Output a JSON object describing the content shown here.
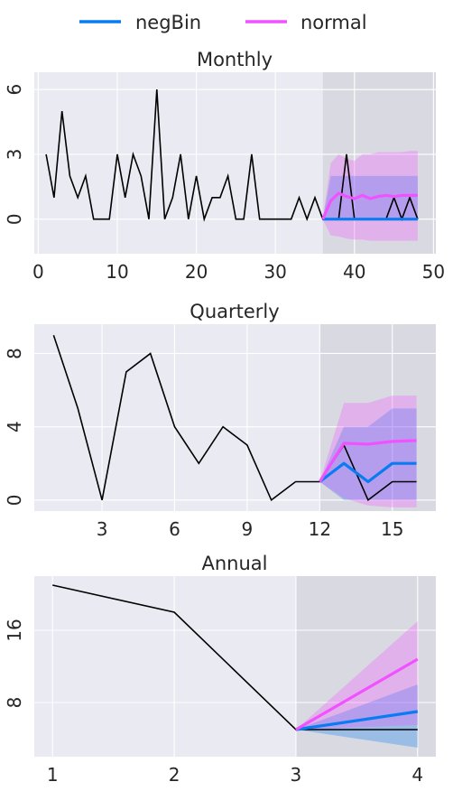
{
  "legend": [
    {
      "label": "negBin",
      "color": "#0a7cf2"
    },
    {
      "label": "normal",
      "color": "#f152ff"
    }
  ],
  "chart_data": [
    {
      "type": "line",
      "title": "Monthly",
      "xlim": [
        -0.5,
        50.3
      ],
      "ylim": [
        -1.6,
        6.8
      ],
      "xticks": [
        0,
        10,
        20,
        30,
        40,
        50
      ],
      "yticks": [
        0,
        3,
        6
      ],
      "forecast_start": 36,
      "actual": {
        "x": [
          1,
          2,
          3,
          4,
          5,
          6,
          7,
          8,
          9,
          10,
          11,
          12,
          13,
          14,
          15,
          16,
          17,
          18,
          19,
          20,
          21,
          22,
          23,
          24,
          25,
          26,
          27,
          28,
          29,
          30,
          31,
          32,
          33,
          34,
          35,
          36,
          37,
          38,
          39,
          40,
          41,
          42,
          43,
          44,
          45,
          46,
          47,
          48
        ],
        "y": [
          3,
          1,
          5,
          2,
          1,
          2,
          0,
          0,
          0,
          3,
          1,
          3,
          2,
          0,
          6,
          0,
          1,
          3,
          0,
          2,
          0,
          1,
          1,
          2,
          0,
          0,
          3,
          0,
          0,
          0,
          0,
          0,
          1,
          0,
          1,
          0,
          0,
          0,
          3,
          0,
          0,
          0,
          0,
          0,
          1,
          0,
          1,
          0
        ]
      },
      "series": [
        {
          "name": "negBin",
          "color": "#0a7cf2",
          "x": [
            36,
            37,
            38,
            39,
            40,
            41,
            42,
            43,
            44,
            45,
            46,
            47,
            48
          ],
          "mean": [
            0,
            0,
            0,
            0,
            0,
            0,
            0,
            0,
            0,
            0,
            0,
            0,
            0
          ],
          "lower": [
            0,
            0,
            0,
            0,
            0,
            0,
            0,
            0,
            0,
            0,
            0,
            0,
            0
          ],
          "upper": [
            0,
            2,
            2,
            2,
            2,
            2,
            2,
            2,
            2,
            2,
            2,
            2,
            2
          ]
        },
        {
          "name": "normal",
          "color": "#f152ff",
          "x": [
            36,
            37,
            38,
            39,
            40,
            41,
            42,
            43,
            44,
            45,
            46,
            47,
            48
          ],
          "mean": [
            0,
            0.85,
            1.2,
            1.05,
            0.95,
            1.1,
            0.95,
            1.05,
            1.1,
            1.05,
            1.1,
            1.1,
            1.1
          ],
          "lower": [
            0,
            -0.75,
            -0.8,
            -0.9,
            -0.95,
            -0.95,
            -1.0,
            -1.0,
            -1.0,
            -1.0,
            -1.0,
            -1.0,
            -1.0
          ],
          "upper": [
            0,
            2.6,
            3.0,
            2.8,
            2.7,
            3.0,
            3.0,
            3.1,
            3.1,
            3.1,
            3.1,
            3.15,
            3.15
          ]
        }
      ]
    },
    {
      "type": "line",
      "title": "Quarterly",
      "xlim": [
        0.2,
        16.8
      ],
      "ylim": [
        -0.6,
        9.6
      ],
      "xticks": [
        3,
        6,
        9,
        12,
        15
      ],
      "yticks": [
        0,
        4,
        8
      ],
      "forecast_start": 12,
      "actual": {
        "x": [
          1,
          2,
          3,
          4,
          5,
          6,
          7,
          8,
          9,
          10,
          11,
          12,
          13,
          14,
          15,
          16
        ],
        "y": [
          9,
          5,
          0,
          7,
          8,
          4,
          2,
          4,
          3,
          0,
          1,
          1,
          3,
          0,
          1,
          1
        ]
      },
      "series": [
        {
          "name": "negBin",
          "color": "#0a7cf2",
          "x": [
            12,
            13,
            14,
            15,
            16
          ],
          "mean": [
            1,
            2,
            1,
            2,
            2
          ],
          "lower": [
            1,
            0,
            0,
            0,
            0
          ],
          "upper": [
            1,
            4,
            4,
            5,
            5
          ]
        },
        {
          "name": "normal",
          "color": "#f152ff",
          "x": [
            12,
            13,
            14,
            15,
            16
          ],
          "mean": [
            1,
            3.1,
            3.05,
            3.2,
            3.25
          ],
          "lower": [
            1,
            0.1,
            -0.3,
            -0.4,
            -0.4
          ],
          "upper": [
            1,
            5.3,
            5.3,
            5.7,
            5.7
          ]
        }
      ]
    },
    {
      "type": "line",
      "title": "Annual",
      "xlim": [
        0.85,
        4.15
      ],
      "ylim": [
        2,
        22
      ],
      "xticks": [
        1,
        2,
        3,
        4
      ],
      "yticks": [
        8,
        16
      ],
      "forecast_start": 3,
      "actual": {
        "x": [
          1,
          2,
          3,
          4
        ],
        "y": [
          21,
          18,
          5,
          5
        ]
      },
      "series": [
        {
          "name": "negBin",
          "color": "#0a7cf2",
          "x": [
            3,
            4
          ],
          "mean": [
            5,
            7
          ],
          "lower": [
            5,
            3
          ],
          "upper": [
            5,
            10
          ]
        },
        {
          "name": "normal",
          "color": "#f152ff",
          "x": [
            3,
            4
          ],
          "mean": [
            5,
            12.8
          ],
          "lower": [
            5,
            5.5
          ],
          "upper": [
            5,
            17
          ]
        }
      ]
    }
  ]
}
